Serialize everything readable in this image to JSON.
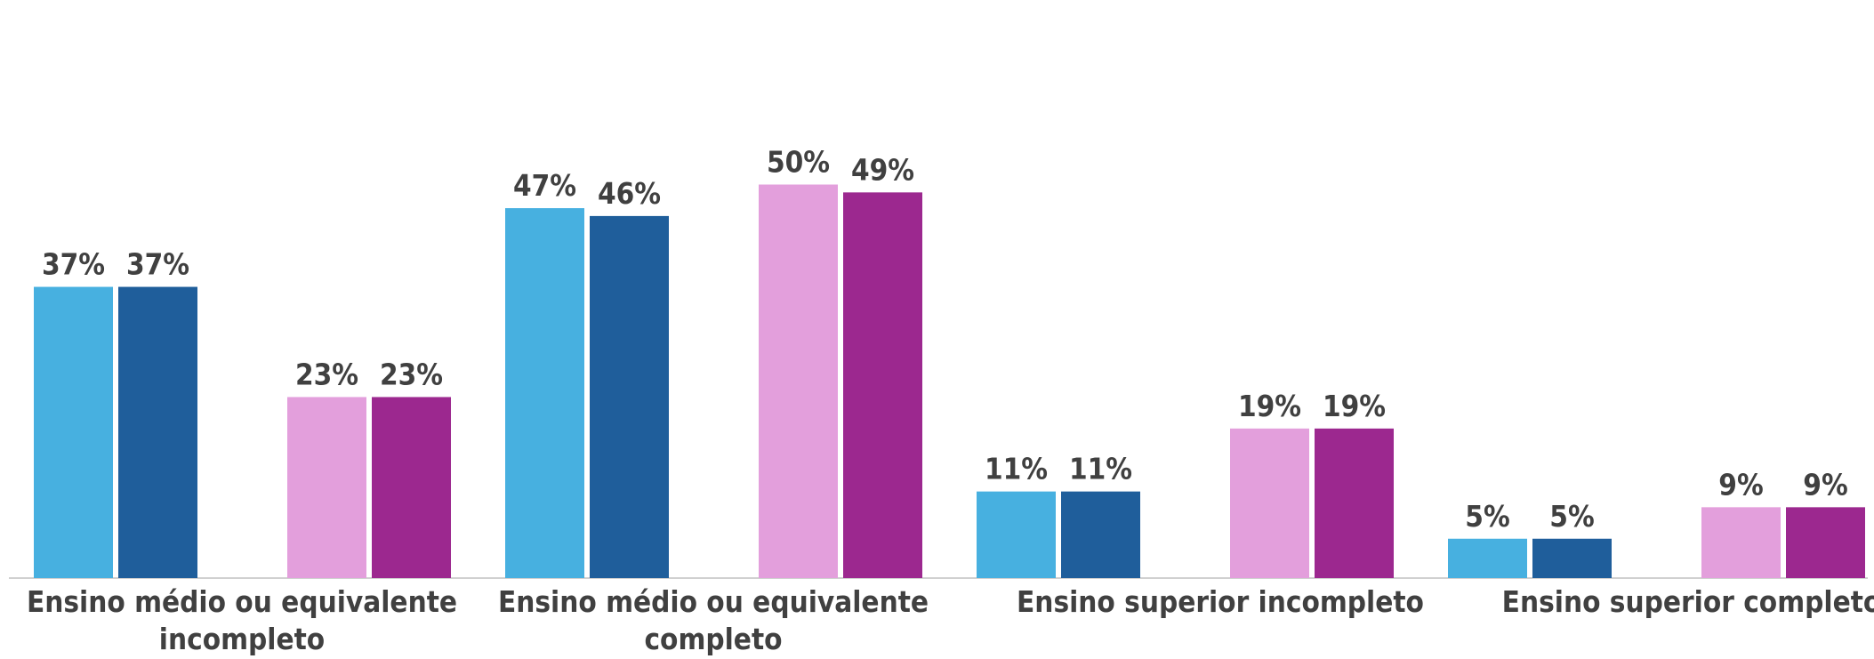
{
  "chart_data": {
    "type": "bar",
    "categories": [
      [
        "Ensino médio ou equivalente",
        "incompleto"
      ],
      [
        "Ensino médio ou equivalente",
        "completo"
      ],
      [
        "Ensino superior incompleto"
      ],
      [
        "Ensino superior completo"
      ]
    ],
    "series": [
      {
        "color": "#47b0e0",
        "values": [
          37,
          47,
          11,
          5
        ]
      },
      {
        "color": "#1f5e9b",
        "values": [
          37,
          46,
          11,
          5
        ]
      },
      {
        "color": "#e39fdc",
        "values": [
          23,
          50,
          19,
          9
        ]
      },
      {
        "color": "#9c288f",
        "values": [
          23,
          49,
          19,
          9
        ]
      }
    ],
    "value_labels": [
      [
        "37%",
        "47%",
        "11%",
        "5%"
      ],
      [
        "37%",
        "46%",
        "11%",
        "5%"
      ],
      [
        "23%",
        "50%",
        "19%",
        "9%"
      ],
      [
        "23%",
        "49%",
        "19%",
        "9%"
      ]
    ],
    "xlabel": "",
    "ylabel": "",
    "ylim": [
      0,
      50
    ],
    "grid": false,
    "legend": "none",
    "axis_color": "#d0d0d0"
  }
}
